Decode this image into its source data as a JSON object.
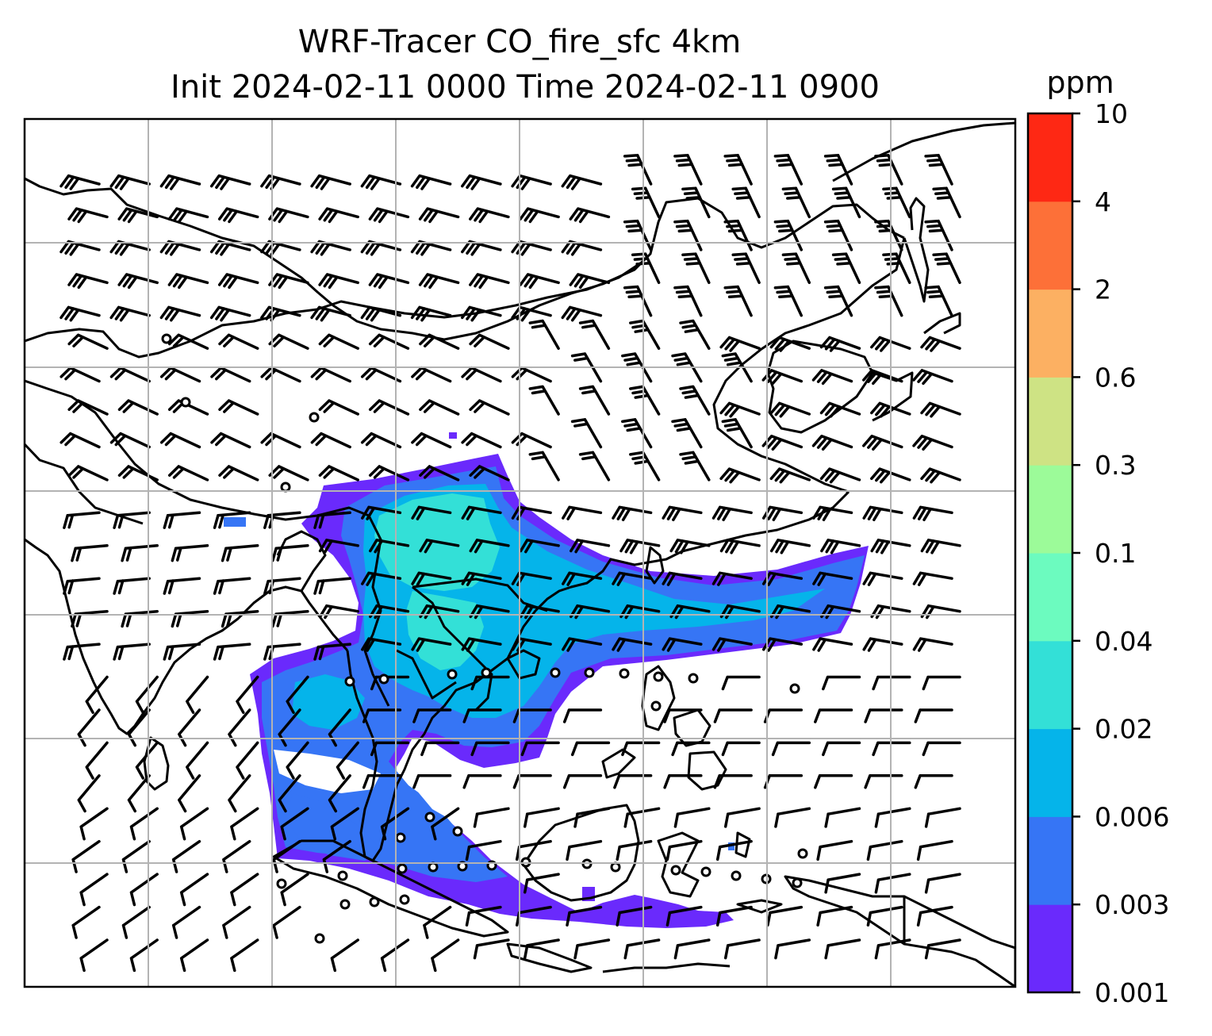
{
  "figure": {
    "title_line1": "WRF-Tracer CO_fire_sfc 4km",
    "title_line2": "Init 2024-02-11 0000 Time 2024-02-11 0900"
  },
  "colorbar": {
    "units": "ppm",
    "ticks": [
      "0.001",
      "0.003",
      "0.006",
      "0.02",
      "0.04",
      "0.1",
      "0.3",
      "0.6",
      "2",
      "4",
      "10"
    ],
    "colors": [
      "#6a2afc",
      "#3675f5",
      "#05b4ea",
      "#33e0d7",
      "#6cfbbf",
      "#9cfb99",
      "#cee384",
      "#fcb062",
      "#fd7038",
      "#fe2814"
    ]
  },
  "map": {
    "graticule": "on",
    "features": [
      "coastlines",
      "country-borders",
      "wind-barbs",
      "calm-circles",
      "co-concentration-plume"
    ]
  }
}
